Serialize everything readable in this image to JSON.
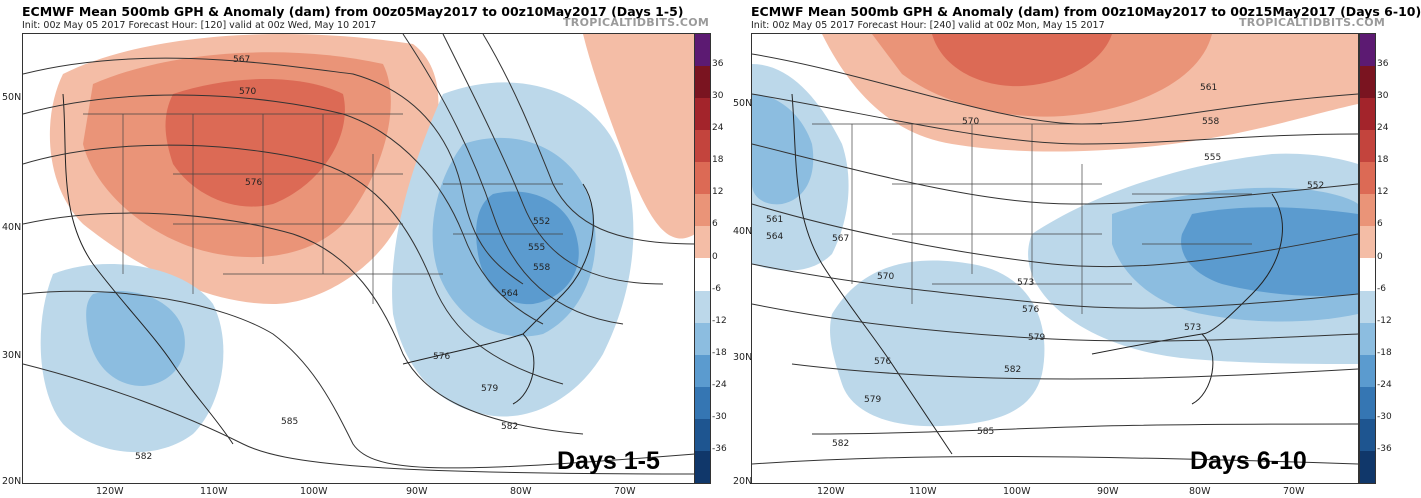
{
  "panels": [
    {
      "title": "ECMWF Mean 500mb GPH & Anomaly (dam) from 00z05May2017 to 00z10May2017 (Days 1-5)",
      "subtitle": "Init: 00z May 05 2017   Forecast Hour: [120]   valid at 00z Wed, May 10 2017",
      "watermark": "TROPICALTIDBITS.COM",
      "days_label": "Days 1-5",
      "lat_labels": [
        "50N",
        "40N",
        "30N",
        "20N"
      ],
      "lon_labels": [
        "120W",
        "110W",
        "100W",
        "90W",
        "80W",
        "70W"
      ],
      "contour_labels": [
        "567",
        "570",
        "576",
        "552",
        "555",
        "558",
        "564",
        "576",
        "579",
        "582",
        "585",
        "582"
      ]
    },
    {
      "title": "ECMWF Mean 500mb GPH & Anomaly (dam) from 00z10May2017 to 00z15May2017 (Days 6-10)",
      "subtitle": "Init: 00z May 05 2017   Forecast Hour: [240]   valid at 00z Mon, May 15 2017",
      "watermark": "TROPICALTIDBITS.COM",
      "days_label": "Days 6-10",
      "lat_labels": [
        "50N",
        "40N",
        "30N",
        "20N"
      ],
      "lon_labels": [
        "120W",
        "110W",
        "100W",
        "90W",
        "80W",
        "70W"
      ],
      "contour_labels": [
        "561",
        "558",
        "555",
        "552",
        "570",
        "561",
        "564",
        "567",
        "570",
        "573",
        "576",
        "573",
        "579",
        "576",
        "579",
        "582",
        "582",
        "585"
      ]
    }
  ],
  "colorbar": {
    "ticks": [
      "36",
      "30",
      "24",
      "18",
      "12",
      "6",
      "0",
      "-6",
      "-12",
      "-18",
      "-24",
      "-30",
      "-36"
    ],
    "colors": [
      "#5c1a72",
      "#7a1420",
      "#a3242b",
      "#c3443d",
      "#dc6a55",
      "#ea9478",
      "#f4bda6",
      "#ffffff",
      "#bcd8ea",
      "#8cbde0",
      "#5b9bcf",
      "#3576b3",
      "#1e5590",
      "#10376a"
    ]
  }
}
